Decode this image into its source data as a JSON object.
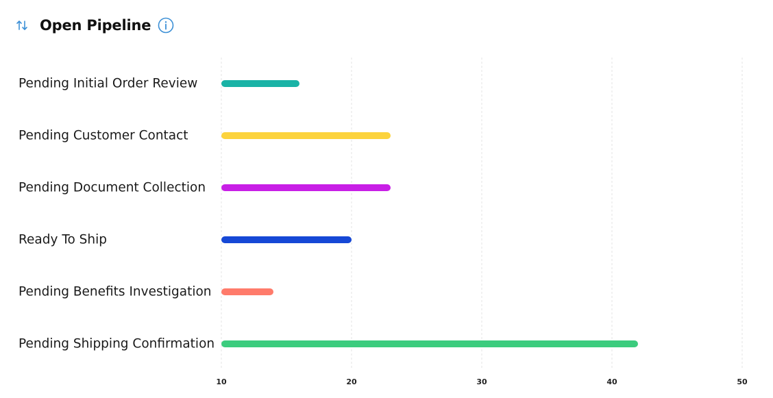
{
  "header": {
    "title": "Open Pipeline",
    "sort_icon": "sort-arrows-icon",
    "info_icon": "info-icon"
  },
  "colors": {
    "accent_icon": "#3b8fd6",
    "grid": "#e3e3e3"
  },
  "chart_data": {
    "type": "bar",
    "orientation": "horizontal",
    "title": "Open Pipeline",
    "categories": [
      "Pending Initial Order Review",
      "Pending Customer Contact",
      "Pending Document Collection",
      "Ready To Ship",
      "Pending Benefits Investigation",
      "Pending Shipping Confirmation"
    ],
    "values": [
      16,
      23,
      23,
      20,
      14,
      42
    ],
    "colors": [
      "#1ab3a6",
      "#fcd33d",
      "#c81fe6",
      "#1648d6",
      "#ff7b6b",
      "#3ccc7e"
    ],
    "xlim": [
      10,
      50
    ],
    "xticks": [
      10,
      20,
      30,
      40,
      50
    ],
    "grid": "vertical dashed",
    "legend": "none"
  }
}
